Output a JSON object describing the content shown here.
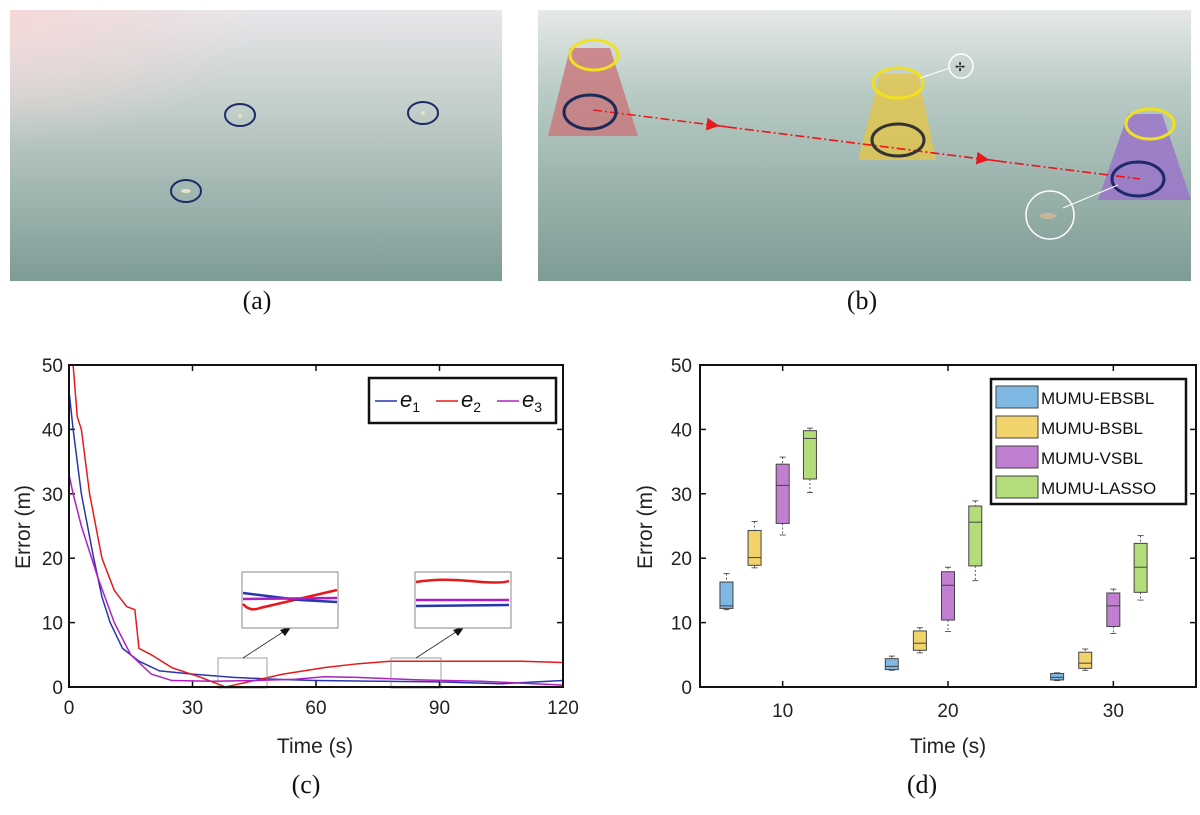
{
  "captions": {
    "a": "(a)",
    "b": "(b)",
    "c": "(c)",
    "d": "(d)"
  },
  "colors": {
    "e1": "#2a35b0",
    "e2": "#e8181c",
    "e3": "#b020c0",
    "ebsbl": "#7fb8e3",
    "bsbl": "#f2d36b",
    "vsbl": "#c07fd0",
    "lasso": "#b4dc7a",
    "zone_red": "#c9757a",
    "zone_yellow": "#e2c64a",
    "zone_purple": "#9b74c9"
  },
  "chart_data": [
    {
      "type": "line",
      "title": "",
      "xlabel": "Time (s)",
      "ylabel": "Error (m)",
      "xlim": [
        0,
        120
      ],
      "ylim": [
        0,
        50
      ],
      "xticks": [
        "0",
        "30",
        "60",
        "90",
        "120"
      ],
      "yticks": [
        "0",
        "10",
        "20",
        "30",
        "40",
        "50"
      ],
      "legend_position": "top-right",
      "grid": false,
      "series": [
        {
          "name": "e1",
          "sub": "1",
          "color": "#2a35b0",
          "x": [
            0,
            1,
            3,
            6,
            8,
            10,
            13,
            17,
            22,
            30,
            40,
            50,
            60,
            75,
            90,
            105,
            120
          ],
          "y": [
            46,
            40,
            30,
            20,
            14,
            10,
            6,
            4,
            2.5,
            2,
            1.5,
            1.2,
            1.0,
            0.9,
            0.8,
            0.5,
            1.0
          ]
        },
        {
          "name": "e2",
          "sub": "2",
          "color": "#e8181c",
          "x": [
            1,
            2,
            3,
            5,
            8,
            11,
            14,
            16,
            17,
            20,
            25,
            32,
            38,
            45,
            52,
            62,
            70,
            78,
            90,
            110,
            120
          ],
          "y": [
            50,
            42,
            40,
            30,
            20,
            15,
            12.5,
            12,
            6,
            5,
            3,
            1.5,
            0,
            1,
            2,
            3,
            3.6,
            4,
            4,
            4,
            3.8
          ]
        },
        {
          "name": "e3",
          "sub": "3",
          "color": "#b020c0",
          "x": [
            0,
            1,
            3,
            7,
            11,
            15,
            20,
            25,
            35,
            45,
            55,
            62,
            70,
            85,
            100,
            120
          ],
          "y": [
            33,
            30,
            25,
            17,
            10,
            5,
            2,
            1,
            0.9,
            1,
            1.2,
            1.6,
            1.5,
            1.1,
            0.9,
            0.3
          ]
        }
      ]
    },
    {
      "type": "box",
      "title": "",
      "xlabel": "Time (s)",
      "ylabel": "Error (m)",
      "xlim": [
        5,
        35
      ],
      "ylim": [
        0,
        50
      ],
      "categories": [
        "10",
        "20",
        "30"
      ],
      "yticks": [
        "0",
        "10",
        "20",
        "30",
        "40",
        "50"
      ],
      "legend_position": "top-right",
      "series": [
        {
          "name": "MUMU-EBSBL",
          "color": "#7fb8e3",
          "offset": -3.4,
          "boxes": [
            {
              "min": 12.0,
              "q1": 12.2,
              "median": 12.6,
              "q3": 16.3,
              "max": 17.6
            },
            {
              "min": 2.6,
              "q1": 2.7,
              "median": 3.2,
              "q3": 4.4,
              "max": 4.8
            },
            {
              "min": 1.0,
              "q1": 1.1,
              "median": 1.5,
              "q3": 2.1,
              "max": 2.2
            }
          ]
        },
        {
          "name": "MUMU-BSBL",
          "color": "#f2d36b",
          "offset": -1.7,
          "boxes": [
            {
              "min": 18.5,
              "q1": 18.9,
              "median": 20.1,
              "q3": 24.3,
              "max": 25.7
            },
            {
              "min": 5.3,
              "q1": 5.7,
              "median": 6.8,
              "q3": 8.7,
              "max": 9.2
            },
            {
              "min": 2.6,
              "q1": 2.9,
              "median": 3.7,
              "q3": 5.4,
              "max": 5.9
            }
          ]
        },
        {
          "name": "MUMU-VSBL",
          "color": "#c07fd0",
          "offset": 0,
          "boxes": [
            {
              "min": 23.6,
              "q1": 25.4,
              "median": 31.3,
              "q3": 34.6,
              "max": 35.7
            },
            {
              "min": 8.6,
              "q1": 10.4,
              "median": 15.8,
              "q3": 17.9,
              "max": 18.6
            },
            {
              "min": 8.3,
              "q1": 9.4,
              "median": 12.6,
              "q3": 14.6,
              "max": 15.2
            }
          ]
        },
        {
          "name": "MUMU-LASSO",
          "color": "#b4dc7a",
          "offset": 1.65,
          "boxes": [
            {
              "min": 30.2,
              "q1": 32.3,
              "median": 38.6,
              "q3": 39.8,
              "max": 40.2
            },
            {
              "min": 16.5,
              "q1": 18.8,
              "median": 25.6,
              "q3": 28.1,
              "max": 28.9
            },
            {
              "min": 13.5,
              "q1": 14.7,
              "median": 18.6,
              "q3": 22.3,
              "max": 23.5
            }
          ]
        }
      ]
    }
  ]
}
